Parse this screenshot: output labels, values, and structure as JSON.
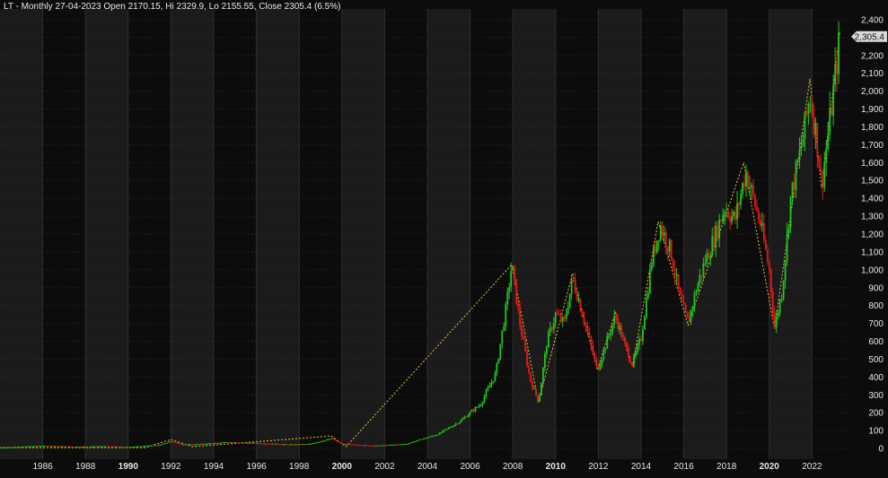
{
  "header": {
    "text": "LT - Monthly 27-04-2023 Open 2170.15, Hi 2329.9, Lo 2155.55, Close 2305.4 (6.5%)"
  },
  "last_price_label": "2,305.4",
  "colors": {
    "background": "#0c0c0c",
    "band_alt": "#1b1b1b",
    "grid": "#2e2e2e",
    "up": "#22c51f",
    "down": "#e01b1b",
    "zigzag": "#e8c23a",
    "axis_text": "#e6e6e6",
    "price_tag_bg": "#d9d9d9",
    "price_tag_text": "#111111"
  },
  "chart_data": {
    "type": "candlestick",
    "symbol": "LT",
    "interval": "Monthly",
    "last_bar": {
      "date": "27-04-2023",
      "open": 2170.15,
      "high": 2329.9,
      "low": 2155.55,
      "close": 2305.4,
      "change_pct": 6.5
    },
    "y_ticks": [
      2400,
      2300,
      2200,
      2100,
      2000,
      1900,
      1800,
      1700,
      1600,
      1500,
      1400,
      1300,
      1200,
      1100,
      1000,
      900,
      800,
      700,
      600,
      500,
      400,
      300,
      200,
      100,
      0
    ],
    "y_tick_labels": [
      "2,400",
      "2,300",
      "2,200",
      "2,100",
      "2,000",
      "1,900",
      "1,800",
      "1,700",
      "1,600",
      "1,500",
      "1,400",
      "1,300",
      "1,200",
      "1,100",
      "1,000",
      "900",
      "800",
      "700",
      "600",
      "500",
      "400",
      "300",
      "200",
      "100",
      "0"
    ],
    "ylim": [
      -60,
      2460
    ],
    "xlim": [
      1984.0,
      2023.75
    ],
    "x_ticks": [
      1986,
      1988,
      1990,
      1992,
      1994,
      1996,
      1998,
      2000,
      2002,
      2004,
      2006,
      2008,
      2010,
      2012,
      2014,
      2016,
      2018,
      2020,
      2022
    ],
    "x_tick_labels": [
      "1986",
      "1988",
      "1990",
      "1992",
      "1994",
      "1996",
      "1998",
      "2000",
      "2002",
      "2004",
      "2006",
      "2008",
      "2010",
      "2012",
      "2014",
      "2016",
      "2018",
      "2020",
      "2022"
    ],
    "x_bold_ticks": [
      "1990",
      "2000",
      "2010",
      "2020"
    ],
    "price_path": [
      [
        1984.0,
        5
      ],
      [
        1986.0,
        15
      ],
      [
        1987.5,
        10
      ],
      [
        1989.0,
        12
      ],
      [
        1990.0,
        8
      ],
      [
        1991.5,
        20
      ],
      [
        1992.0,
        40
      ],
      [
        1992.5,
        22
      ],
      [
        1993.5,
        25
      ],
      [
        1994.5,
        35
      ],
      [
        1996.0,
        30
      ],
      [
        1997.5,
        22
      ],
      [
        1998.5,
        25
      ],
      [
        1999.5,
        55
      ],
      [
        2000.0,
        25
      ],
      [
        2001.5,
        15
      ],
      [
        2003.0,
        25
      ],
      [
        2004.5,
        80
      ],
      [
        2005.5,
        150
      ],
      [
        2006.5,
        250
      ],
      [
        2007.2,
        420
      ],
      [
        2007.7,
        800
      ],
      [
        2007.95,
        1030
      ],
      [
        2008.3,
        720
      ],
      [
        2008.8,
        390
      ],
      [
        2009.2,
        260
      ],
      [
        2009.6,
        600
      ],
      [
        2010.0,
        750
      ],
      [
        2010.4,
        700
      ],
      [
        2010.8,
        950
      ],
      [
        2011.2,
        780
      ],
      [
        2011.6,
        600
      ],
      [
        2011.95,
        440
      ],
      [
        2012.4,
        600
      ],
      [
        2012.8,
        740
      ],
      [
        2013.3,
        560
      ],
      [
        2013.6,
        470
      ],
      [
        2014.0,
        620
      ],
      [
        2014.5,
        1050
      ],
      [
        2014.9,
        1250
      ],
      [
        2015.4,
        1100
      ],
      [
        2015.8,
        850
      ],
      [
        2016.2,
        700
      ],
      [
        2016.6,
        900
      ],
      [
        2017.0,
        1050
      ],
      [
        2017.5,
        1200
      ],
      [
        2017.9,
        1350
      ],
      [
        2018.4,
        1280
      ],
      [
        2018.9,
        1550
      ],
      [
        2019.3,
        1380
      ],
      [
        2019.6,
        1250
      ],
      [
        2020.0,
        1000
      ],
      [
        2020.25,
        680
      ],
      [
        2020.6,
        880
      ],
      [
        2021.0,
        1400
      ],
      [
        2021.6,
        1750
      ],
      [
        2021.9,
        1980
      ],
      [
        2022.2,
        1750
      ],
      [
        2022.45,
        1480
      ],
      [
        2022.8,
        1800
      ],
      [
        2023.1,
        2100
      ],
      [
        2023.3,
        2305
      ]
    ],
    "zigzag": [
      [
        1984.0,
        5
      ],
      [
        1990.8,
        5
      ],
      [
        1992.0,
        50
      ],
      [
        1993.0,
        10
      ],
      [
        1999.5,
        70
      ],
      [
        2000.2,
        10
      ],
      [
        2007.95,
        1030
      ],
      [
        2009.2,
        260
      ],
      [
        2010.8,
        980
      ],
      [
        2011.95,
        440
      ],
      [
        2012.8,
        760
      ],
      [
        2013.6,
        460
      ],
      [
        2014.8,
        1270
      ],
      [
        2016.2,
        690
      ],
      [
        2018.8,
        1600
      ],
      [
        2020.25,
        670
      ],
      [
        2021.9,
        2070
      ],
      [
        2022.45,
        1460
      ],
      [
        2023.3,
        2330
      ]
    ]
  }
}
